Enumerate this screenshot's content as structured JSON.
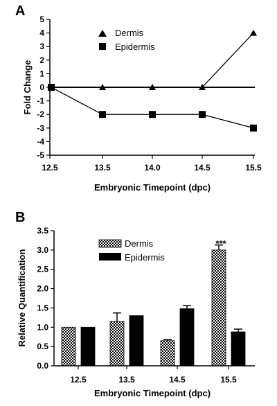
{
  "chart_data": [
    {
      "panel": "A",
      "type": "line",
      "xlabel": "Embryonic Timepoint (dpc)",
      "ylabel": "Fold Change",
      "categories": [
        "12.5",
        "13.5",
        "14.0",
        "14.5",
        "15.5"
      ],
      "ylim": [
        -5,
        5
      ],
      "yticks": [
        "5",
        "4",
        "3",
        "2",
        "1",
        "0",
        "-1",
        "-2",
        "-3",
        "-4",
        "-5"
      ],
      "legend_position": "top-center",
      "series": [
        {
          "name": "Dermis",
          "marker": "triangle",
          "values": [
            0,
            0,
            0,
            0,
            4
          ]
        },
        {
          "name": "Epidermis",
          "marker": "square",
          "values": [
            0,
            -2,
            -2,
            -2,
            -3
          ]
        }
      ]
    },
    {
      "panel": "B",
      "type": "bar",
      "xlabel": "Embryonic Timepoint (dpc)",
      "ylabel": "Relative Quantification",
      "categories": [
        "12.5",
        "13.5",
        "14.5",
        "15.5"
      ],
      "ylim": [
        0,
        3.5
      ],
      "yticks": [
        "3.5",
        "3.0",
        "2.5",
        "2.0",
        "1.5",
        "1.0",
        "0.5",
        "0.0"
      ],
      "legend_position": "top-center",
      "series": [
        {
          "name": "Dermis",
          "pattern": "checkered",
          "values": [
            1.0,
            1.15,
            0.65,
            3.0
          ],
          "errors": [
            0.0,
            0.22,
            0.03,
            0.13
          ]
        },
        {
          "name": "Epidermis",
          "pattern": "solid",
          "values": [
            1.0,
            1.3,
            1.48,
            0.88
          ],
          "errors": [
            0.0,
            0.0,
            0.08,
            0.07
          ]
        }
      ],
      "annotations": [
        {
          "category": "15.5",
          "series": "Dermis",
          "text": "***"
        }
      ]
    }
  ]
}
